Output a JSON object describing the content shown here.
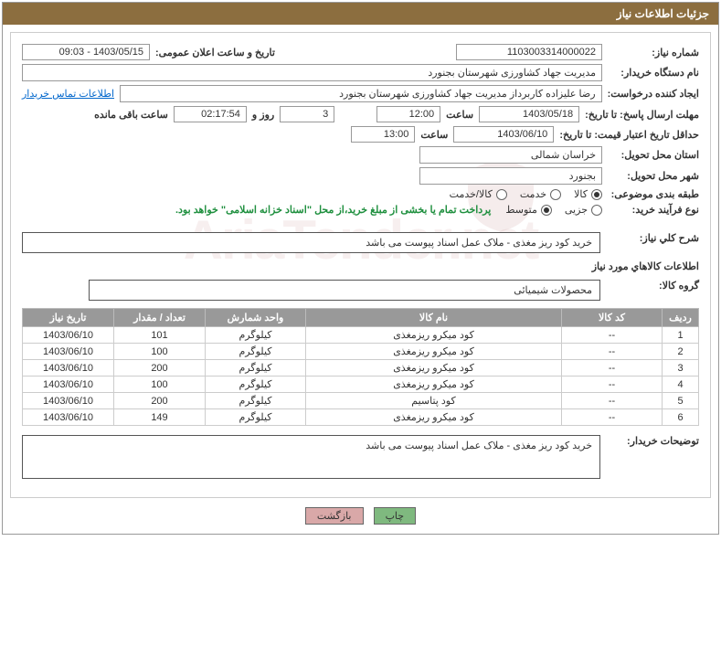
{
  "header": {
    "title": "جزئیات اطلاعات نیاز"
  },
  "form": {
    "reqNo": {
      "label": "شماره نیاز:",
      "value": "1103003314000022"
    },
    "announceDate": {
      "label": "تاریخ و ساعت اعلان عمومی:",
      "value": "1403/05/15 - 09:03"
    },
    "buyerOrg": {
      "label": "نام دستگاه خریدار:",
      "value": "مدیریت جهاد کشاورزی شهرستان بجنورد"
    },
    "requester": {
      "label": "ایجاد کننده درخواست:",
      "value": "رضا علیزاده کاربرداز مدیریت جهاد کشاورزی شهرستان بجنورد"
    },
    "contactLink": "اطلاعات تماس خریدار",
    "deadline": {
      "label": "مهلت ارسال پاسخ: تا تاریخ:",
      "date": "1403/05/18",
      "timeLabel": "ساعت",
      "time": "12:00",
      "daysLabel": "روز و",
      "days": "3",
      "remainLabel": "ساعت باقی مانده",
      "remain": "02:17:54"
    },
    "validity": {
      "label": "حداقل تاریخ اعتبار قیمت: تا تاریخ:",
      "date": "1403/06/10",
      "timeLabel": "ساعت",
      "time": "13:00"
    },
    "province": {
      "label": "استان محل تحویل:",
      "value": "خراسان شمالی"
    },
    "city": {
      "label": "شهر محل تحویل:",
      "value": "بجنورد"
    },
    "category": {
      "label": "طبقه بندی موضوعی:",
      "options": [
        "کالا",
        "خدمت",
        "کالا/خدمت"
      ],
      "selected": 0
    },
    "processType": {
      "label": "نوع فرآیند خرید:",
      "options": [
        "جزیی",
        "متوسط"
      ],
      "selected": 1,
      "note": "پرداخت تمام یا بخشی از مبلغ خرید،از محل \"اسناد خزانه اسلامی\" خواهد بود."
    },
    "desc": {
      "label": "شرح کلي نیاز:",
      "value": "خرید کود ریز مغذی - ملاک عمل اسناد پیوست می باشد"
    },
    "goodsInfoTitle": "اطلاعات کالاهاي مورد نیاز",
    "group": {
      "label": "گروه کالا:",
      "value": "محصولات شیمیائی"
    },
    "buyerNotes": {
      "label": "توضيحات خریدار:",
      "value": "خرید کود ریز مغذی - ملاک عمل اسناد پیوست می باشد"
    }
  },
  "table": {
    "headers": [
      "ردیف",
      "کد کالا",
      "نام کالا",
      "واحد شمارش",
      "تعداد / مقدار",
      "تاريخ نياز"
    ],
    "rows": [
      [
        "1",
        "--",
        "کود میکرو ریزمغذی",
        "کیلوگرم",
        "101",
        "1403/06/10"
      ],
      [
        "2",
        "--",
        "کود میکرو ریزمغذی",
        "کیلوگرم",
        "100",
        "1403/06/10"
      ],
      [
        "3",
        "--",
        "کود میکرو ریزمغذی",
        "کیلوگرم",
        "200",
        "1403/06/10"
      ],
      [
        "4",
        "--",
        "کود میکرو ریزمغذی",
        "کیلوگرم",
        "100",
        "1403/06/10"
      ],
      [
        "5",
        "--",
        "کود پتاسیم",
        "کیلوگرم",
        "200",
        "1403/06/10"
      ],
      [
        "6",
        "--",
        "کود میکرو ریزمغذی",
        "کیلوگرم",
        "149",
        "1403/06/10"
      ]
    ]
  },
  "buttons": {
    "print": "چاپ",
    "back": "بازگشت"
  },
  "colors": {
    "headerBg": "#8c6e3f",
    "tableHeaderBg": "#999999",
    "printBtn": "#7fb97f",
    "backBtn": "#d9a8a8",
    "link": "#0066cc",
    "note": "#1e8f3e"
  }
}
